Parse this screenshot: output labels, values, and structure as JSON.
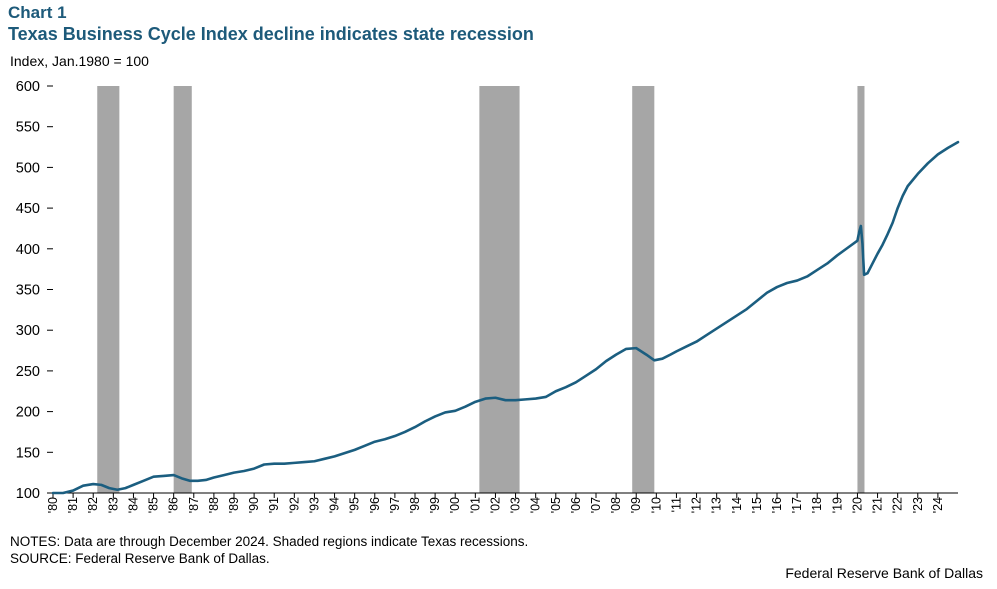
{
  "header": {
    "chart_label": "Chart 1",
    "title": "Texas Business Cycle Index decline indicates state recession"
  },
  "footer": {
    "notes": "NOTES: Data are through December 2024. Shaded regions indicate Texas recessions.",
    "source": "SOURCE: Federal Reserve Bank of Dallas.",
    "credit": "Federal Reserve Bank of Dallas"
  },
  "colors": {
    "line": "#1b5e80",
    "recession": "#a6a6a6",
    "title": "#1d5a7a"
  },
  "chart_data": {
    "type": "line",
    "title": "Texas Business Cycle Index decline indicates state recession",
    "ylabel": "Index,  Jan.1980 = 100",
    "xlabel": "",
    "ylim": [
      100,
      600
    ],
    "yticks": [
      100,
      150,
      200,
      250,
      300,
      350,
      400,
      450,
      500,
      550,
      600
    ],
    "xlim": [
      1980.0,
      2025.0
    ],
    "xtick_labels": [
      "'80",
      "'81",
      "'82",
      "'83",
      "'84",
      "'85",
      "'86",
      "'87",
      "'88",
      "'89",
      "'90",
      "'91",
      "'92",
      "'93",
      "'94",
      "'95",
      "'96",
      "'97",
      "'98",
      "'99",
      "'00",
      "'01",
      "'02",
      "'03",
      "'04",
      "'05",
      "'06",
      "'07",
      "'08",
      "'09",
      "'10",
      "'11",
      "'12",
      "'13",
      "'14",
      "'15",
      "'16",
      "'17",
      "'18",
      "'19",
      "'20",
      "'21",
      "'22",
      "'23",
      "'24"
    ],
    "recessions": [
      [
        1982.2,
        1983.3
      ],
      [
        1986.0,
        1986.9
      ],
      [
        2001.2,
        2003.2
      ],
      [
        2008.8,
        2009.9
      ],
      [
        2020.0,
        2020.35
      ]
    ],
    "series": [
      {
        "name": "Texas Business Cycle Index",
        "x": [
          1980.0,
          1980.5,
          1981.0,
          1981.5,
          1982.0,
          1982.4,
          1982.8,
          1983.2,
          1983.6,
          1984.0,
          1984.5,
          1985.0,
          1985.5,
          1986.0,
          1986.4,
          1986.8,
          1987.2,
          1987.6,
          1988.0,
          1988.5,
          1989.0,
          1989.5,
          1990.0,
          1990.5,
          1991.0,
          1991.5,
          1992.0,
          1992.5,
          1993.0,
          1993.5,
          1994.0,
          1994.5,
          1995.0,
          1995.5,
          1996.0,
          1996.5,
          1997.0,
          1997.5,
          1998.0,
          1998.5,
          1999.0,
          1999.5,
          2000.0,
          2000.5,
          2001.0,
          2001.5,
          2002.0,
          2002.5,
          2003.0,
          2003.5,
          2004.0,
          2004.5,
          2005.0,
          2005.5,
          2006.0,
          2006.5,
          2007.0,
          2007.5,
          2008.0,
          2008.5,
          2009.0,
          2009.5,
          2009.9,
          2010.3,
          2010.7,
          2011.0,
          2011.5,
          2012.0,
          2012.5,
          2013.0,
          2013.5,
          2014.0,
          2014.5,
          2015.0,
          2015.5,
          2016.0,
          2016.5,
          2017.0,
          2017.5,
          2018.0,
          2018.5,
          2019.0,
          2019.5,
          2020.0,
          2020.08,
          2020.17,
          2020.25,
          2020.33,
          2020.5,
          2020.75,
          2021.0,
          2021.25,
          2021.5,
          2021.75,
          2022.0,
          2022.25,
          2022.5,
          2023.0,
          2023.5,
          2024.0,
          2024.5,
          2025.0
        ],
        "values": [
          100,
          100,
          103,
          109,
          111,
          110,
          106,
          104,
          106,
          110,
          115,
          120,
          121,
          122,
          118,
          115,
          115,
          116,
          119,
          122,
          125,
          127,
          130,
          135,
          136,
          136,
          137,
          138,
          139,
          142,
          145,
          149,
          153,
          158,
          163,
          166,
          170,
          175,
          181,
          188,
          194,
          199,
          201,
          206,
          212,
          216,
          217,
          214,
          214,
          215,
          216,
          218,
          225,
          230,
          236,
          244,
          252,
          262,
          270,
          277,
          278,
          270,
          263,
          265,
          270,
          274,
          280,
          286,
          294,
          302,
          310,
          318,
          326,
          336,
          346,
          353,
          358,
          361,
          366,
          374,
          382,
          392,
          401,
          410,
          420,
          428,
          406,
          368,
          370,
          382,
          394,
          405,
          418,
          432,
          450,
          465,
          477,
          492,
          505,
          516,
          524,
          531
        ]
      }
    ]
  }
}
